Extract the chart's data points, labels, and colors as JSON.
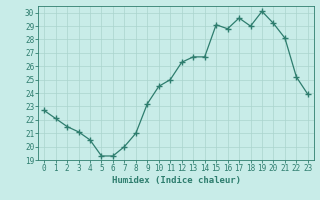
{
  "x": [
    0,
    1,
    2,
    3,
    4,
    5,
    6,
    7,
    8,
    9,
    10,
    11,
    12,
    13,
    14,
    15,
    16,
    17,
    18,
    19,
    20,
    21,
    22,
    23
  ],
  "y": [
    22.7,
    22.1,
    21.5,
    21.1,
    20.5,
    19.3,
    19.3,
    20.0,
    21.0,
    23.2,
    24.5,
    25.0,
    26.3,
    26.7,
    26.7,
    29.1,
    28.8,
    29.6,
    29.0,
    30.1,
    29.2,
    28.1,
    25.2,
    23.9
  ],
  "line_color": "#2e7d6e",
  "marker": "+",
  "marker_size": 4,
  "bg_color": "#c8ece8",
  "grid_color": "#aad4ce",
  "xlabel": "Humidex (Indice chaleur)",
  "xlim": [
    -0.5,
    23.5
  ],
  "ylim": [
    19,
    30.5
  ],
  "yticks": [
    19,
    20,
    21,
    22,
    23,
    24,
    25,
    26,
    27,
    28,
    29,
    30
  ],
  "xticks": [
    0,
    1,
    2,
    3,
    4,
    5,
    6,
    7,
    8,
    9,
    10,
    11,
    12,
    13,
    14,
    15,
    16,
    17,
    18,
    19,
    20,
    21,
    22,
    23
  ],
  "tick_color": "#2e7d6e",
  "label_color": "#2e7d6e",
  "axis_fontsize": 6.5,
  "tick_fontsize": 5.5,
  "linewidth": 0.9
}
